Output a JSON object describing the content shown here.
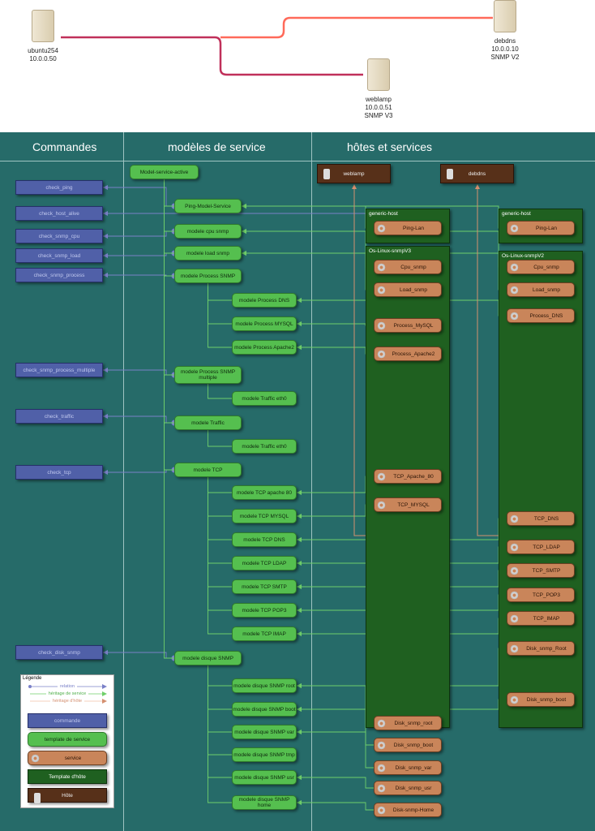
{
  "network": {
    "servers": [
      {
        "name": "ubuntu254",
        "ip": "10.0.0.50",
        "snmp": ""
      },
      {
        "name": "debdns",
        "ip": "10.0.0.10",
        "snmp": "SNMP V2"
      },
      {
        "name": "weblamp",
        "ip": "10.0.0.51",
        "snmp": "SNMP V3"
      }
    ],
    "link_colors": [
      "#c0305a",
      "#ff6a5a"
    ]
  },
  "columns": [
    "Commandes",
    "modèles de service",
    "hôtes et services"
  ],
  "commands": [
    "check_ping",
    "check_host_alive",
    "check_snmp_cpu",
    "check_snmp_load",
    "check_snmp_process",
    "check_snmp_process_multiple",
    "check_traffic",
    "check_tcp",
    "check_disk_snmp"
  ],
  "service_templates": [
    "Model-service-active",
    "Ping-Model-Service",
    "modele cpu snmp",
    "modele load snmp",
    "modele Process SNMP",
    "modele Process DNS",
    "modele Process MYSQL",
    "modele Process Apache2",
    "modele Process SNMP multiple",
    "modele Traffic eth0",
    "modele Traffic",
    "modele Traffic eth0",
    "modele TCP",
    "modele TCP apache 80",
    "modele TCP MYSQL",
    "modele TCP DNS",
    "modele TCP LDAP",
    "modele TCP SMTP",
    "modele TCP POP3",
    "modele TCP IMAP",
    "modele disque SNMP",
    "modele disque SNMP root",
    "modele disque SNMP boot",
    "modele disque SNMP var",
    "modele disque SNMP tmp",
    "modele disque SNMP usr",
    "modele disque SNMP home"
  ],
  "hosts": [
    "weblamp",
    "debdns"
  ],
  "host_templates": [
    "generic-host",
    "generic-host",
    "Os-Linux-snmpV3",
    "Os-Linux-snmpV2"
  ],
  "services_weblamp": [
    "Ping-Lan",
    "Cpu_snmp",
    "Load_snmp",
    "Process_MySQL",
    "Process_Apache2",
    "TCP_Apache_80",
    "TCP_MYSQL",
    "Disk_snmp_root",
    "Disk_snmp_boot",
    "Disk_snmp_var",
    "Disk_snmp_usr",
    "Disk-snmp-Home"
  ],
  "services_debdns": [
    "Ping-Lan",
    "Cpu_snmp",
    "Load_snmp",
    "Process_DNS",
    "TCP_DNS",
    "TCP_LDAP",
    "TCP_SMTP",
    "TCP_POP3",
    "TCP_IMAP",
    "Disk_snmp_Root",
    "Disk_snmp_boot"
  ],
  "legend": {
    "title": "Légende",
    "relation": "relation",
    "service_inheritance": "héritage de service",
    "host_inheritance": "héritage d'hôte",
    "command": "commande",
    "service_template": "template de service",
    "service": "service",
    "host_template": "Template d'hôte",
    "host": "Hôte"
  },
  "colors": {
    "background": "#266b69",
    "command": "#5060a8",
    "service_template": "#55bf4f",
    "service": "#c9855a",
    "host_template": "#1f6020",
    "host": "#573019",
    "relation": "#7a80c8",
    "service_edge": "#6fcf6a",
    "host_edge": "#d49070"
  }
}
